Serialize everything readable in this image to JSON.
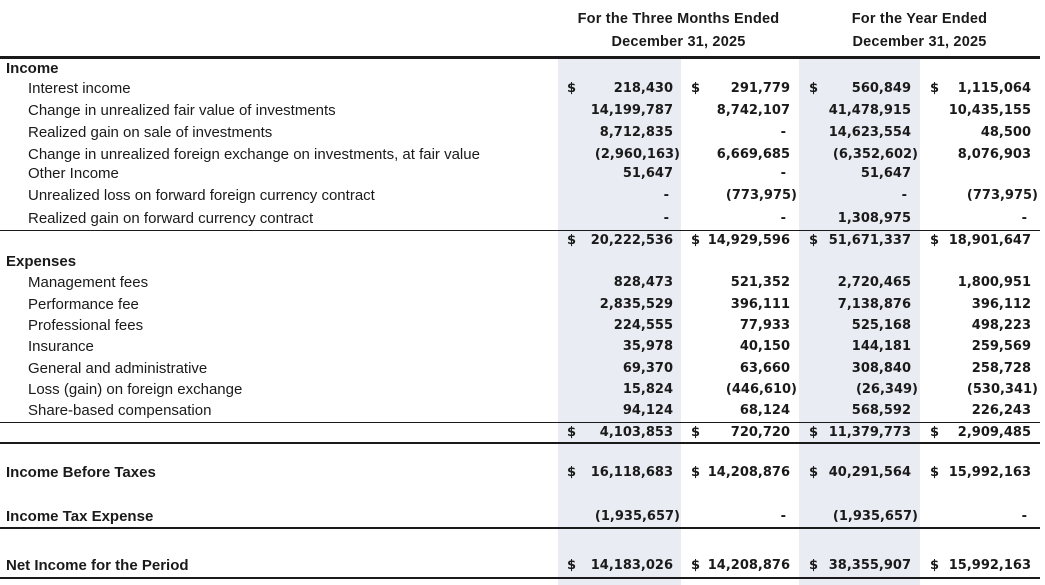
{
  "header": {
    "three_months": {
      "line1": "For the Three Months Ended",
      "line2": "December 31, 2025"
    },
    "year": {
      "line1": "For the Year Ended",
      "line2": "December 31, 2025"
    }
  },
  "currency_symbol": "$",
  "rows": [
    {
      "label": "Income",
      "kind": "section"
    },
    {
      "label": "Interest income",
      "kind": "item",
      "values": [
        "218,430",
        "291,779",
        "560,849",
        "1,115,064"
      ],
      "dollars": [
        true,
        true,
        true,
        true
      ]
    },
    {
      "label": "Change in unrealized fair value of investments",
      "kind": "item",
      "values": [
        "14,199,787",
        "8,742,107",
        "41,478,915",
        "10,435,155"
      ]
    },
    {
      "label": "Realized gain on sale of investments",
      "kind": "item",
      "values": [
        "8,712,835",
        "-",
        "14,623,554",
        "48,500"
      ]
    },
    {
      "label": "Change in unrealized foreign exchange on investments, at fair value",
      "kind": "item",
      "values": [
        "(2,960,163)",
        "6,669,685",
        "(6,352,602)",
        "8,076,903"
      ]
    },
    {
      "label": "Other Income",
      "kind": "item",
      "values": [
        "51,647",
        "-",
        "51,647",
        ""
      ]
    },
    {
      "label": "Unrealized loss on forward foreign currency contract",
      "kind": "item",
      "values": [
        "-",
        "(773,975)",
        "-",
        "(773,975)"
      ]
    },
    {
      "label": "Realized gain on forward currency contract",
      "kind": "item",
      "values": [
        "-",
        "-",
        "1,308,975",
        "-"
      ]
    },
    {
      "label": "",
      "kind": "total",
      "values": [
        "20,222,536",
        "14,929,596",
        "51,671,337",
        "18,901,647"
      ],
      "dollars": [
        true,
        true,
        true,
        true
      ]
    },
    {
      "label": "Expenses",
      "kind": "section"
    },
    {
      "label": "Management fees",
      "kind": "item",
      "values": [
        "828,473",
        "521,352",
        "2,720,465",
        "1,800,951"
      ]
    },
    {
      "label": "Performance fee",
      "kind": "item",
      "values": [
        "2,835,529",
        "396,111",
        "7,138,876",
        "396,112"
      ]
    },
    {
      "label": "Professional fees",
      "kind": "item",
      "values": [
        "224,555",
        "77,933",
        "525,168",
        "498,223"
      ]
    },
    {
      "label": "Insurance",
      "kind": "item",
      "values": [
        "35,978",
        "40,150",
        "144,181",
        "259,569"
      ]
    },
    {
      "label": "General and administrative",
      "kind": "item",
      "values": [
        "69,370",
        "63,660",
        "308,840",
        "258,728"
      ]
    },
    {
      "label": "Loss (gain) on foreign exchange",
      "kind": "item",
      "values": [
        "15,824",
        "(446,610)",
        "(26,349)",
        "(530,341)"
      ]
    },
    {
      "label": "Share-based compensation",
      "kind": "item",
      "values": [
        "94,124",
        "68,124",
        "568,592",
        "226,243"
      ]
    },
    {
      "label": "",
      "kind": "total",
      "values": [
        "4,103,853",
        "720,720",
        "11,379,773",
        "2,909,485"
      ],
      "dollars": [
        true,
        true,
        true,
        true
      ]
    },
    {
      "label": "Income Before Taxes",
      "kind": "section",
      "values": [
        "16,118,683",
        "14,208,876",
        "40,291,564",
        "15,992,163"
      ],
      "dollars": [
        true,
        true,
        true,
        true
      ]
    },
    {
      "label": "Income Tax Expense",
      "kind": "section",
      "values": [
        "(1,935,657)",
        "-",
        "(1,935,657)",
        "-"
      ]
    },
    {
      "label": "Net Income for the Period",
      "kind": "section",
      "values": [
        "14,183,026",
        "14,208,876",
        "38,355,907",
        "15,992,163"
      ],
      "dollars": [
        true,
        true,
        true,
        true
      ]
    }
  ]
}
